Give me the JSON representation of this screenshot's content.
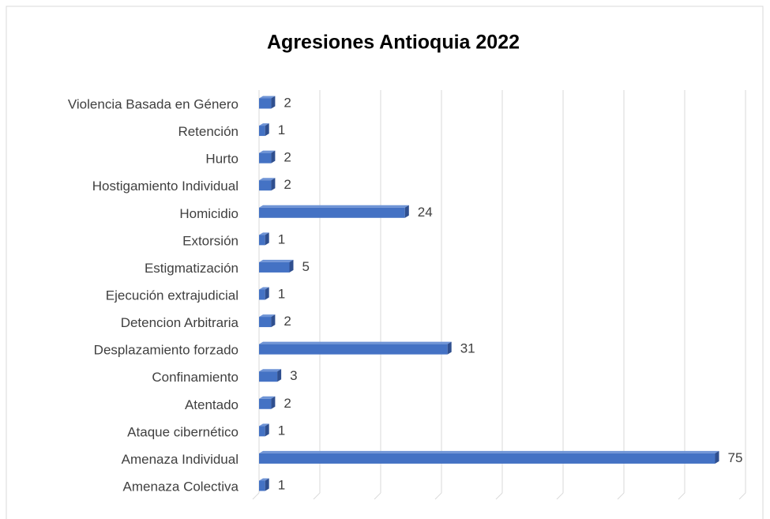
{
  "chart_data": {
    "type": "bar",
    "orientation": "horizontal",
    "title": "Agresiones Antioquia 2022",
    "categories": [
      "Violencia Basada en Género",
      "Retención",
      "Hurto",
      "Hostigamiento Individual",
      "Homicidio",
      "Extorsión",
      "Estigmatización",
      "Ejecución extrajudicial",
      "Detencion Arbitraria",
      "Desplazamiento forzado",
      "Confinamiento",
      "Atentado",
      "Ataque cibernético",
      "Amenaza Individual",
      "Amenaza Colectiva"
    ],
    "values": [
      2,
      1,
      2,
      2,
      24,
      1,
      5,
      1,
      2,
      31,
      3,
      2,
      1,
      75,
      1
    ],
    "color": "#4472c4",
    "xlim": [
      0,
      80
    ],
    "xticks": [
      0,
      10,
      20,
      30,
      40,
      50,
      60,
      70,
      80
    ],
    "grid": true
  }
}
